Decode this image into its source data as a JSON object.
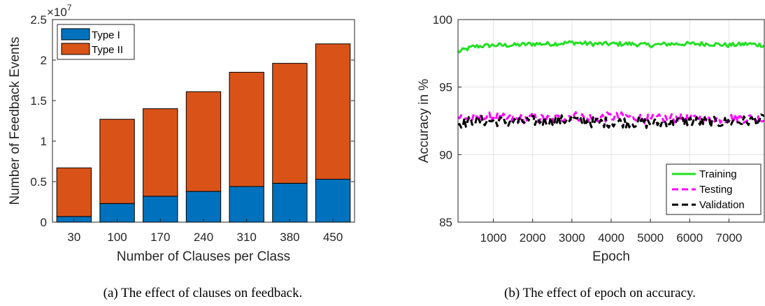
{
  "chart_data": [
    {
      "type": "bar",
      "stacked": true,
      "xlabel": "Number of Clauses per Class",
      "ylabel": "Number of Feedback Events",
      "categories": [
        "30",
        "100",
        "170",
        "240",
        "310",
        "380",
        "450"
      ],
      "ylim": [
        0,
        2.5
      ],
      "yticks": [
        "0",
        "0.5",
        "1",
        "1.5",
        "2",
        "2.5"
      ],
      "exponent_label": "×10",
      "exponent_power": "7",
      "legend_position": "top-left",
      "grid": false,
      "series": [
        {
          "name": "Type I",
          "color": "#0072bd",
          "values": [
            0.07,
            0.23,
            0.32,
            0.38,
            0.44,
            0.48,
            0.53
          ]
        },
        {
          "name": "Type II",
          "color": "#d95319",
          "values": [
            0.6,
            1.04,
            1.08,
            1.23,
            1.41,
            1.48,
            1.67
          ]
        }
      ],
      "caption": "(a) The effect of clauses on feedback."
    },
    {
      "type": "line",
      "xlabel": "Epoch",
      "ylabel": "Accuracy in %",
      "xlim": [
        100,
        7900
      ],
      "ylim": [
        85,
        100
      ],
      "xticks": [
        1000,
        2000,
        3000,
        4000,
        5000,
        6000,
        7000
      ],
      "yticks": [
        85,
        90,
        95,
        100
      ],
      "grid": true,
      "legend_position": "bottom-right",
      "series": [
        {
          "name": "Training",
          "color": "#22e022",
          "style": "solid",
          "base": 98.1,
          "noise": 0.16,
          "x": [
            100,
            500,
            1000,
            1500,
            2000,
            2500,
            3000,
            3500,
            4000,
            4500,
            5000,
            5500,
            6000,
            6500,
            7000,
            7500,
            7900
          ],
          "values": [
            97.6,
            98.0,
            98.1,
            98.1,
            98.2,
            98.2,
            98.3,
            98.2,
            98.2,
            98.2,
            98.1,
            98.2,
            98.2,
            98.2,
            98.1,
            98.2,
            98.1
          ]
        },
        {
          "name": "Testing",
          "color": "#ff00ff",
          "style": "dashed",
          "base": 92.7,
          "noise": 0.35,
          "x": [
            100,
            500,
            1000,
            1500,
            2000,
            2500,
            3000,
            3500,
            4000,
            4500,
            5000,
            5500,
            6000,
            6500,
            7000,
            7500,
            7900
          ],
          "values": [
            92.8,
            92.7,
            92.8,
            92.6,
            92.7,
            92.6,
            92.9,
            92.7,
            92.8,
            92.8,
            92.6,
            92.7,
            92.7,
            92.6,
            92.7,
            92.7,
            92.6
          ]
        },
        {
          "name": "Validation",
          "color": "#000000",
          "style": "dashed",
          "base": 92.45,
          "noise": 0.4,
          "x": [
            100,
            500,
            1000,
            1500,
            2000,
            2500,
            3000,
            3500,
            4000,
            4500,
            5000,
            5500,
            6000,
            6500,
            7000,
            7500,
            7900
          ],
          "values": [
            92.3,
            92.5,
            92.5,
            92.4,
            92.5,
            92.5,
            92.6,
            92.4,
            92.4,
            92.4,
            92.3,
            92.4,
            92.5,
            92.4,
            92.4,
            92.5,
            92.6
          ]
        }
      ],
      "caption": "(b) The effect of epoch on accuracy."
    }
  ]
}
